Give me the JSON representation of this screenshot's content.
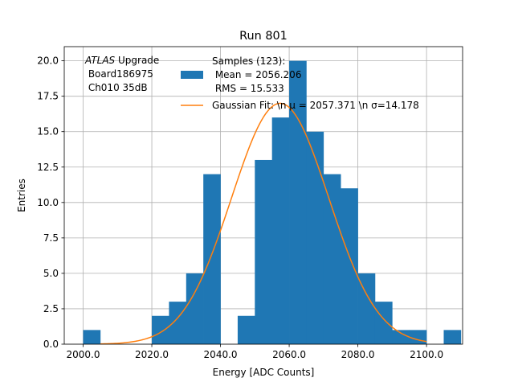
{
  "chart_data": {
    "type": "bar",
    "title": "Run 801",
    "xlabel": "Energy [ADC Counts]",
    "ylabel": "Entries",
    "xlim": [
      1994.5,
      2110.5
    ],
    "ylim": [
      0,
      21
    ],
    "grid": true,
    "x_ticks": [
      2000,
      2020,
      2040,
      2060,
      2080,
      2100
    ],
    "x_tick_labels": [
      "2000.0",
      "2020.0",
      "2040.0",
      "2060.0",
      "2080.0",
      "2100.0"
    ],
    "y_ticks": [
      0,
      2.5,
      5,
      7.5,
      10,
      12.5,
      15,
      17.5,
      20
    ],
    "y_tick_labels": [
      "0.0",
      "2.5",
      "5.0",
      "7.5",
      "10.0",
      "12.5",
      "15.0",
      "17.5",
      "20.0"
    ],
    "bin_width": 5,
    "bins": [
      {
        "x": 2000,
        "count": 1
      },
      {
        "x": 2005,
        "count": 0
      },
      {
        "x": 2010,
        "count": 0
      },
      {
        "x": 2015,
        "count": 0
      },
      {
        "x": 2020,
        "count": 2
      },
      {
        "x": 2025,
        "count": 3
      },
      {
        "x": 2030,
        "count": 5
      },
      {
        "x": 2035,
        "count": 12
      },
      {
        "x": 2040,
        "count": 0
      },
      {
        "x": 2045,
        "count": 2
      },
      {
        "x": 2050,
        "count": 13
      },
      {
        "x": 2055,
        "count": 16
      },
      {
        "x": 2060,
        "count": 20
      },
      {
        "x": 2065,
        "count": 15
      },
      {
        "x": 2070,
        "count": 12
      },
      {
        "x": 2075,
        "count": 11
      },
      {
        "x": 2080,
        "count": 5
      },
      {
        "x": 2085,
        "count": 3
      },
      {
        "x": 2090,
        "count": 1
      },
      {
        "x": 2095,
        "count": 1
      },
      {
        "x": 2100,
        "count": 0
      },
      {
        "x": 2105,
        "count": 1
      }
    ],
    "fit": {
      "mean": 2057.371,
      "sigma": 14.178,
      "amplitude": 17.0,
      "x_range": [
        2005,
        2100
      ]
    },
    "colors": {
      "histogram": "#1f77b4",
      "fit": "#ff7f0e",
      "grid": "#b0b0b0"
    },
    "annotation": {
      "italic": "ATLAS",
      "line1_rest": " Upgrade",
      "line2": " Board186975",
      "line3": " Ch010 35dB"
    },
    "legend": {
      "placement": "top-right",
      "samples_line1": "Samples (123):",
      "samples_line2": " Mean = 2056.206",
      "samples_line3": " RMS = 15.533",
      "fit_label": "Gaussian Fit: \\n μ = 2057.371 \\n σ=14.178"
    }
  }
}
